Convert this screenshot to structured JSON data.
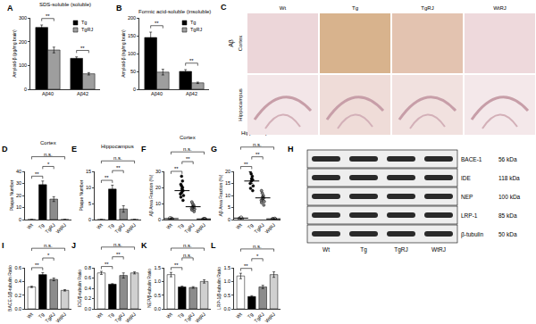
{
  "chart_data": [
    {
      "label": "A",
      "type": "bar",
      "title": "SDS-soluble (soluble)",
      "y_label": "Amyloid-β (pg/mg brain)",
      "categories": [
        "Aβ40",
        "Aβ42"
      ],
      "series": [
        {
          "name": "Tg",
          "color": "#000000",
          "values": [
            260,
            130
          ],
          "errors": [
            10,
            6
          ]
        },
        {
          "name": "TgRJ",
          "color": "#9e9e9e",
          "values": [
            165,
            65
          ],
          "errors": [
            12,
            5
          ]
        }
      ],
      "ylim": [
        0,
        300
      ],
      "yticks": [
        0,
        100,
        200,
        300
      ],
      "legend": "top right",
      "comparisons": [
        {
          "category": "Aβ40",
          "text": "**"
        },
        {
          "category": "Aβ42",
          "text": "**"
        }
      ]
    },
    {
      "label": "B",
      "type": "bar",
      "title": "Formic acid-soluble (insoluble)",
      "y_label": "Amyloid-β (ng/mg brain)",
      "categories": [
        "Aβ40",
        "Aβ42"
      ],
      "series": [
        {
          "name": "Tg",
          "color": "#000000",
          "values": [
            145,
            50
          ],
          "errors": [
            15,
            5
          ]
        },
        {
          "name": "TgRJ",
          "color": "#9e9e9e",
          "values": [
            48,
            18
          ],
          "errors": [
            8,
            2
          ]
        }
      ],
      "ylim": [
        0,
        200
      ],
      "yticks": [
        0,
        50,
        100,
        150,
        200
      ],
      "legend": "top right",
      "comparisons": [
        {
          "category": "Aβ40",
          "text": "**"
        },
        {
          "category": "Aβ42",
          "text": "**"
        }
      ]
    },
    {
      "label": "D",
      "type": "bar",
      "title": "Cortex",
      "y_label": "Plaque Number",
      "categories": [
        "Wt",
        "Tg",
        "TgRJ",
        "WtRJ"
      ],
      "values": [
        0,
        29,
        17,
        0
      ],
      "errors": [
        0,
        3,
        2,
        0
      ],
      "colors": [
        "#ffffff",
        "#000000",
        "#8c8c8c",
        "#ffffff"
      ],
      "ylim": [
        0,
        40
      ],
      "yticks": [
        0,
        10,
        20,
        30,
        40
      ],
      "comparisons": [
        {
          "between": [
            "Wt",
            "Tg"
          ],
          "text": "**"
        },
        {
          "between": [
            "Tg",
            "TgRJ"
          ],
          "text": "*"
        },
        {
          "between": [
            "Wt",
            "WtRJ"
          ],
          "text": "n.s."
        }
      ]
    },
    {
      "label": "E",
      "type": "bar",
      "title": "Hippocampus",
      "y_label": "Plaque Number",
      "categories": [
        "Wt",
        "Tg",
        "TgRJ",
        "WtRJ"
      ],
      "values": [
        0,
        9.5,
        3.3,
        0
      ],
      "errors": [
        0,
        1.2,
        1,
        0
      ],
      "colors": [
        "#ffffff",
        "#000000",
        "#8c8c8c",
        "#ffffff"
      ],
      "ylim": [
        0,
        15
      ],
      "yticks": [
        0,
        5,
        10,
        15
      ],
      "comparisons": [
        {
          "between": [
            "Wt",
            "Tg"
          ],
          "text": "**"
        },
        {
          "between": [
            "Tg",
            "TgRJ"
          ],
          "text": "**"
        },
        {
          "between": [
            "Wt",
            "WtRJ"
          ],
          "text": "n.s."
        }
      ]
    },
    {
      "label": "F",
      "type": "scatter",
      "title": "Cortex",
      "y_label": "Aβ Area Fraction (%)",
      "marker": "circle",
      "categories": [
        "Wt",
        "Tg",
        "TgRJ",
        "WtRJ"
      ],
      "points": [
        [
          0.3,
          0.5,
          0.8,
          0.2,
          1.0,
          0.6,
          0.4,
          0.9,
          0.7,
          0.3
        ],
        [
          12,
          14,
          16,
          17,
          18,
          19,
          20,
          22,
          24,
          27,
          15,
          21
        ],
        [
          5,
          6,
          7,
          7.5,
          8,
          8.5,
          9,
          10,
          11,
          6.5
        ],
        [
          0.2,
          0.4,
          0.3,
          0.5,
          0.6,
          0.3,
          0.4,
          0.2
        ]
      ],
      "values": [
        0.6,
        18,
        8,
        0.4
      ],
      "errors": [
        0.1,
        1.5,
        0.8,
        0.1
      ],
      "colors": [
        "#ffffff",
        "#000000",
        "#8c8c8c",
        "#d0d0d0"
      ],
      "ylim": [
        0,
        30
      ],
      "yticks": [
        0,
        10,
        20,
        30
      ],
      "comparisons": [
        {
          "between": [
            "Wt",
            "Tg"
          ],
          "text": "**"
        },
        {
          "between": [
            "Tg",
            "TgRJ"
          ],
          "text": "**"
        },
        {
          "between": [
            "Wt",
            "WtRJ"
          ],
          "text": "n.s."
        }
      ]
    },
    {
      "label": "G",
      "type": "scatter",
      "title": "Hippocampus",
      "y_label": "Aβ Area Fraction (%)",
      "marker": "circle",
      "categories": [
        "Wt",
        "Tg",
        "TgRJ",
        "WtRJ"
      ],
      "points": [
        [
          0.3,
          0.5,
          0.8,
          0.4,
          1.0,
          0.6,
          0.2,
          0.7
        ],
        [
          12,
          13,
          14,
          15,
          16,
          16.5,
          17,
          18,
          19,
          20
        ],
        [
          6,
          7,
          8,
          8.5,
          9,
          9.5,
          10,
          11,
          7.5,
          12
        ],
        [
          0.2,
          0.3,
          0.4,
          0.3,
          0.2,
          0.5
        ]
      ],
      "values": [
        0.6,
        16,
        9,
        0.3
      ],
      "errors": [
        0.1,
        1,
        0.7,
        0.1
      ],
      "colors": [
        "#ffffff",
        "#000000",
        "#8c8c8c",
        "#d0d0d0"
      ],
      "ylim": [
        0,
        20
      ],
      "yticks": [
        0,
        5,
        10,
        15,
        20
      ],
      "comparisons": [
        {
          "between": [
            "Wt",
            "Tg"
          ],
          "text": "**"
        },
        {
          "between": [
            "Tg",
            "TgRJ"
          ],
          "text": "**"
        },
        {
          "between": [
            "Wt",
            "WtRJ"
          ],
          "text": "n.s."
        }
      ]
    },
    {
      "label": "I",
      "type": "bar",
      "y_label": "BACE-1/β-tubulin Ratio",
      "categories": [
        "Wt",
        "Tg",
        "TgRJ",
        "WtRJ"
      ],
      "values": [
        0.32,
        0.5,
        0.43,
        0.27
      ],
      "errors": [
        0.01,
        0.03,
        0.02,
        0.01
      ],
      "colors": [
        "#ffffff",
        "#000000",
        "#8c8c8c",
        "#d0d0d0"
      ],
      "ylim": [
        0,
        0.6
      ],
      "yticks": [
        {
          "value": 0,
          "label": "0.0"
        },
        0.2,
        0.4,
        0.6
      ],
      "comparisons": [
        {
          "between": [
            "Wt",
            "Tg"
          ],
          "text": "**"
        },
        {
          "between": [
            "Tg",
            "TgRJ"
          ],
          "text": "*"
        },
        {
          "between": [
            "Wt",
            "WtRJ"
          ],
          "text": "n.s."
        }
      ]
    },
    {
      "label": "J",
      "type": "bar",
      "y_label": "IDE/β-tubulin Ratio",
      "categories": [
        "Wt",
        "Tg",
        "TgRJ",
        "WtRJ"
      ],
      "values": [
        0.7,
        0.48,
        0.65,
        0.7
      ],
      "errors": [
        0.03,
        0.01,
        0.05,
        0.02
      ],
      "colors": [
        "#ffffff",
        "#000000",
        "#8c8c8c",
        "#d0d0d0"
      ],
      "ylim": [
        0,
        0.8
      ],
      "yticks": [
        {
          "value": 0,
          "label": "0.0"
        },
        0.2,
        0.4,
        0.6,
        0.8
      ],
      "comparisons": [
        {
          "between": [
            "Wt",
            "Tg"
          ],
          "text": "**"
        },
        {
          "between": [
            "Tg",
            "TgRJ"
          ],
          "text": "**"
        },
        {
          "between": [
            "Wt",
            "WtRJ"
          ],
          "text": "n.s."
        }
      ]
    },
    {
      "label": "K",
      "type": "bar",
      "y_label": "NEP/β-tubulin Ratio",
      "categories": [
        "Wt",
        "Tg",
        "TgRJ",
        "WtRJ"
      ],
      "values": [
        1.25,
        0.8,
        0.78,
        1.0
      ],
      "errors": [
        0.08,
        0.03,
        0.03,
        0.06
      ],
      "colors": [
        "#ffffff",
        "#000000",
        "#8c8c8c",
        "#d0d0d0"
      ],
      "ylim": [
        0,
        1.5
      ],
      "yticks": [
        {
          "value": 0,
          "label": "0.0"
        },
        0.5,
        {
          "value": 1,
          "label": "1.0"
        },
        1.5
      ],
      "comparisons": [
        {
          "between": [
            "Wt",
            "Tg"
          ],
          "text": "**"
        },
        {
          "between": [
            "Tg",
            "TgRJ"
          ],
          "text": "n.s."
        },
        {
          "between": [
            "Wt",
            "WtRJ"
          ],
          "text": "n.s."
        }
      ]
    },
    {
      "label": "L",
      "type": "bar",
      "y_label": "LRP-1/β-tubulin Ratio",
      "categories": [
        "Wt",
        "Tg",
        "TgRJ",
        "WtRJ"
      ],
      "values": [
        1.2,
        0.45,
        0.8,
        1.25
      ],
      "errors": [
        0.1,
        0.03,
        0.06,
        0.1
      ],
      "colors": [
        "#ffffff",
        "#000000",
        "#8c8c8c",
        "#d0d0d0"
      ],
      "ylim": [
        0,
        1.5
      ],
      "yticks": [
        {
          "value": 0,
          "label": "0.0"
        },
        0.5,
        {
          "value": 1,
          "label": "1.0"
        },
        1.5
      ],
      "comparisons": [
        {
          "between": [
            "Wt",
            "Tg"
          ],
          "text": "**"
        },
        {
          "between": [
            "Tg",
            "TgRJ"
          ],
          "text": "*"
        },
        {
          "between": [
            "Wt",
            "WtRJ"
          ],
          "text": "n.s."
        }
      ]
    }
  ],
  "panel_c": {
    "label": "C",
    "stain": "Aβ",
    "columns": [
      "Wt",
      "Tg",
      "TgRJ",
      "WtRJ"
    ],
    "rows": [
      "Cortex",
      "Hippocampus"
    ]
  },
  "panel_h": {
    "label": "H",
    "lanes": [
      "Wt",
      "Tg",
      "TgRJ",
      "WtRJ"
    ],
    "bands": [
      {
        "name": "BACE-1",
        "size": "56 kDa"
      },
      {
        "name": "IDE",
        "size": "118 kDa"
      },
      {
        "name": "NEP",
        "size": "100 kDa"
      },
      {
        "name": "LRP-1",
        "size": "85 kDa"
      },
      {
        "name": "β-tubulin",
        "size": "50 kDa"
      }
    ]
  }
}
